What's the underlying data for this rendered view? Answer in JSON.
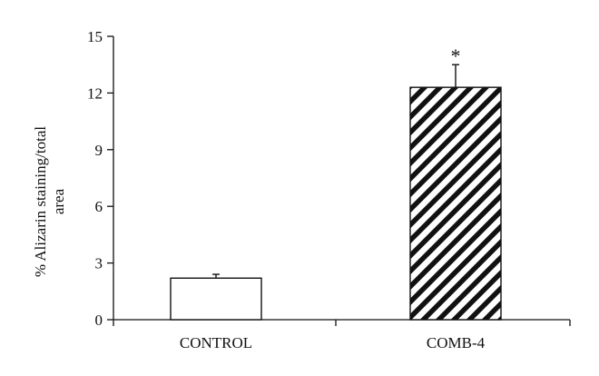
{
  "chart_data": {
    "type": "bar",
    "title": "",
    "xlabel": "",
    "ylabel_lines": [
      "% Alizarin staining/total",
      "area"
    ],
    "ylim": [
      0,
      15
    ],
    "yticks": [
      0,
      3,
      6,
      9,
      12,
      15
    ],
    "categories": [
      "CONTROL",
      "COMB-4"
    ],
    "values": [
      2.2,
      12.3
    ],
    "errors": [
      0.2,
      1.2
    ],
    "fills": [
      "white",
      "diagonal-hatch"
    ],
    "annotations": [
      {
        "category": "COMB-4",
        "text": "*"
      }
    ],
    "grid": false,
    "legend": "none"
  }
}
